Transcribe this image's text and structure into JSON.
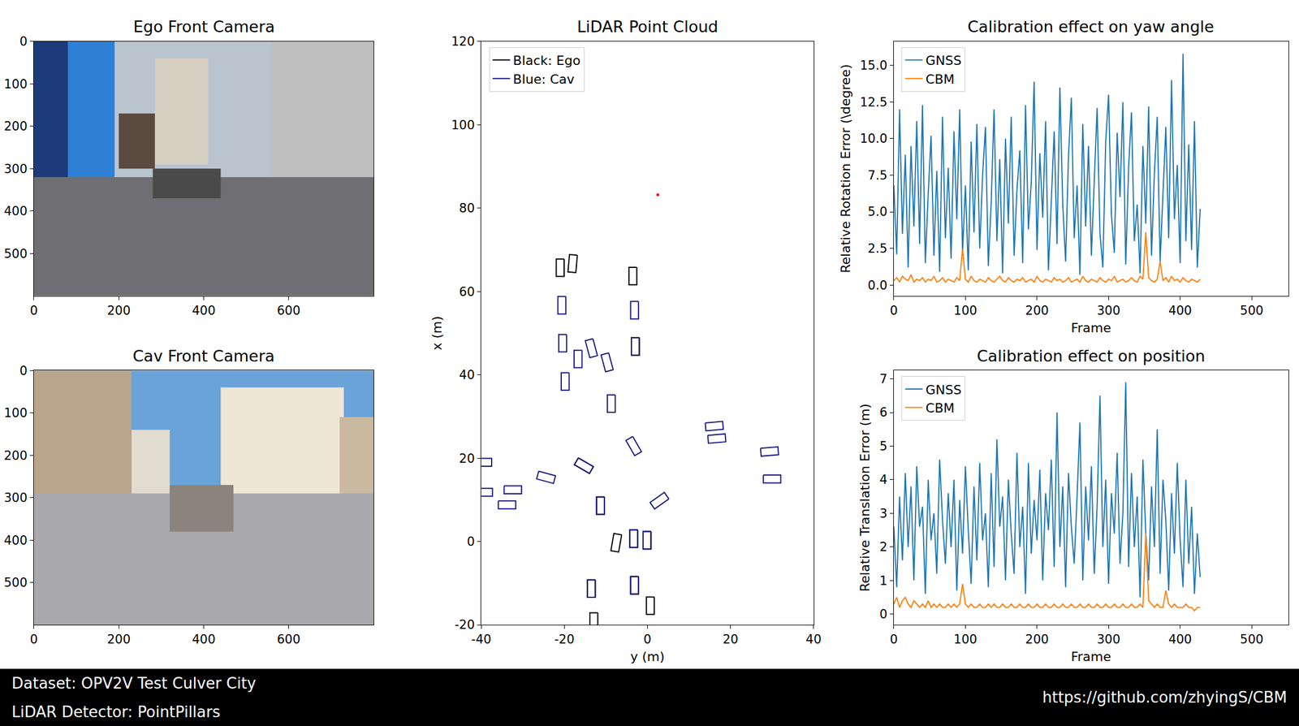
{
  "chart_data": [
    {
      "type": "image",
      "title": "Ego Front Camera",
      "xlim": [
        0,
        800
      ],
      "xticks": [
        0,
        200,
        400,
        600
      ],
      "ylim": [
        600,
        0
      ],
      "yticks": [
        0,
        100,
        200,
        300,
        400,
        500
      ],
      "grid": false
    },
    {
      "type": "image",
      "title": "Cav Front Camera",
      "xlim": [
        0,
        800
      ],
      "xticks": [
        0,
        200,
        400,
        600
      ],
      "ylim": [
        600,
        0
      ],
      "yticks": [
        0,
        100,
        200,
        300,
        400,
        500
      ],
      "grid": false
    },
    {
      "type": "scatter",
      "title": "LiDAR Point Cloud",
      "x_label": "y (m)",
      "y_label": "x (m)",
      "xlim": [
        -40,
        40
      ],
      "xticks": [
        -40,
        -20,
        0,
        20,
        40
      ],
      "ylim": [
        -20,
        120
      ],
      "yticks": [
        -20,
        0,
        20,
        40,
        60,
        80,
        100,
        120
      ],
      "grid": false,
      "legend": "upper left",
      "box_size": [
        1.9,
        4.2
      ],
      "series": [
        {
          "name": "Black: Ego",
          "color": "#000000",
          "boxes": [
            [
              -21.0,
              65.7,
              0
            ],
            [
              -18.0,
              66.7,
              -5
            ],
            [
              -3.5,
              63.7,
              0
            ],
            [
              -2.9,
              46.8,
              0
            ],
            [
              -15.3,
              18.2,
              60
            ],
            [
              -11.3,
              8.6,
              0
            ],
            [
              -0.1,
              0.3,
              0
            ],
            [
              -3.3,
              0.7,
              0
            ],
            [
              -7.5,
              -0.3,
              -10
            ],
            [
              -13.5,
              -11.3,
              0
            ],
            [
              -3.1,
              -10.5,
              0
            ],
            [
              0.7,
              -15.4,
              0
            ],
            [
              -12.9,
              -19.2,
              0
            ]
          ]
        },
        {
          "name": "Blue: Cav",
          "color": "#1a1a80",
          "boxes": [
            [
              -3.1,
              55.5,
              0
            ],
            [
              -20.6,
              56.7,
              0
            ],
            [
              -20.4,
              47.6,
              0
            ],
            [
              -13.5,
              46.4,
              15
            ],
            [
              -16.7,
              43.8,
              0
            ],
            [
              -9.7,
              43.0,
              15
            ],
            [
              -2.9,
              46.8,
              0
            ],
            [
              -19.8,
              38.4,
              0
            ],
            [
              -8.7,
              33.1,
              0
            ],
            [
              -3.3,
              22.9,
              30
            ],
            [
              -15.3,
              18.2,
              60
            ],
            [
              -24.4,
              15.4,
              75
            ],
            [
              -32.4,
              12.4,
              90
            ],
            [
              -33.8,
              8.8,
              90
            ],
            [
              -39.6,
              19.0,
              90
            ],
            [
              -39.4,
              11.8,
              90
            ],
            [
              -11.3,
              8.6,
              0
            ],
            [
              2.9,
              9.8,
              -55
            ],
            [
              16.1,
              27.7,
              95
            ],
            [
              16.7,
              24.7,
              95
            ],
            [
              29.4,
              21.6,
              95
            ],
            [
              30.0,
              15.0,
              90
            ],
            [
              -0.1,
              0.3,
              0
            ],
            [
              -3.3,
              0.7,
              0
            ],
            [
              -13.5,
              -11.3,
              0
            ],
            [
              -3.1,
              -10.5,
              0
            ]
          ]
        }
      ],
      "red_point": {
        "y": 2.5,
        "x": 83.2,
        "color": "#ff0000"
      }
    },
    {
      "type": "line",
      "title": "Calibration effect on yaw angle",
      "x_label": "Frame",
      "y_label": "Relative Rotation Error (\\degree)",
      "xlim": [
        0,
        551
      ],
      "xticks": [
        0,
        100,
        200,
        300,
        400,
        500
      ],
      "ylim": [
        -0.74,
        16.64
      ],
      "yticks": [
        {
          "value": 0,
          "label": "0.0"
        },
        2.5,
        {
          "value": 5,
          "label": "5.0"
        },
        7.5,
        {
          "value": 10,
          "label": "10.0"
        },
        12.5,
        {
          "value": 15,
          "label": "15.0"
        }
      ],
      "grid": false,
      "legend": "upper left",
      "x": [
        0,
        4,
        8,
        12,
        16,
        20,
        24,
        28,
        32,
        36,
        40,
        44,
        48,
        52,
        56,
        60,
        64,
        68,
        72,
        76,
        80,
        84,
        88,
        92,
        96,
        100,
        104,
        108,
        112,
        116,
        120,
        124,
        128,
        132,
        136,
        140,
        144,
        148,
        152,
        156,
        160,
        164,
        168,
        172,
        176,
        180,
        184,
        188,
        192,
        196,
        200,
        204,
        208,
        212,
        216,
        220,
        224,
        228,
        232,
        236,
        240,
        244,
        248,
        252,
        256,
        260,
        264,
        268,
        272,
        276,
        280,
        284,
        288,
        292,
        296,
        300,
        304,
        308,
        312,
        316,
        320,
        324,
        328,
        332,
        336,
        340,
        344,
        348,
        352,
        356,
        360,
        364,
        368,
        372,
        376,
        380,
        384,
        388,
        392,
        396,
        400,
        404,
        408,
        412,
        416,
        420,
        424,
        428
      ],
      "series": [
        {
          "name": "GNSS",
          "color": "#1f77b4",
          "values": [
            6.8,
            2.1,
            12.0,
            3.5,
            8.9,
            1.2,
            9.5,
            4.0,
            11.2,
            2.8,
            12.3,
            1.5,
            6.2,
            10.2,
            2.0,
            7.8,
            0.9,
            11.5,
            3.2,
            8.0,
            1.8,
            10.5,
            4.5,
            12.0,
            2.2,
            6.8,
            1.0,
            9.8,
            3.6,
            11.0,
            2.5,
            7.5,
            10.8,
            1.3,
            5.6,
            12.0,
            3.0,
            8.6,
            0.8,
            10.0,
            4.2,
            11.5,
            2.0,
            6.5,
            9.2,
            1.5,
            12.3,
            3.8,
            7.0,
            13.9,
            2.4,
            9.0,
            4.6,
            11.2,
            1.0,
            6.0,
            10.5,
            2.8,
            13.5,
            5.5,
            1.6,
            8.8,
            12.8,
            3.2,
            6.8,
            0.7,
            11.0,
            4.0,
            9.5,
            2.0,
            7.2,
            12.1,
            3.5,
            1.2,
            9.8,
            13.0,
            4.8,
            2.2,
            10.4,
            6.0,
            12.5,
            1.4,
            8.0,
            11.8,
            3.0,
            5.5,
            0.8,
            9.5,
            4.2,
            12.2,
            2.0,
            7.6,
            11.5,
            1.6,
            6.2,
            10.8,
            3.2,
            14.0,
            4.5,
            8.2,
            1.5,
            15.8,
            3.0,
            9.6,
            2.4,
            11.2,
            1.2,
            5.2
          ]
        },
        {
          "name": "CBM",
          "color": "#ff7f0e",
          "values": [
            0.3,
            0.5,
            0.2,
            0.6,
            0.4,
            0.3,
            0.7,
            0.2,
            0.4,
            0.3,
            0.5,
            0.2,
            0.4,
            0.3,
            0.6,
            0.2,
            0.3,
            0.5,
            0.2,
            0.4,
            0.3,
            0.2,
            0.5,
            0.3,
            2.5,
            0.4,
            0.2,
            0.6,
            0.3,
            0.2,
            0.4,
            0.3,
            0.2,
            0.5,
            0.3,
            0.2,
            0.4,
            0.6,
            0.3,
            0.2,
            0.5,
            0.3,
            0.2,
            0.4,
            0.3,
            0.5,
            0.2,
            0.3,
            0.4,
            0.2,
            0.6,
            0.3,
            0.2,
            0.4,
            0.3,
            0.2,
            0.5,
            0.3,
            0.4,
            0.2,
            0.3,
            0.5,
            0.2,
            0.3,
            0.4,
            0.2,
            0.6,
            0.3,
            0.2,
            0.4,
            0.3,
            0.2,
            0.5,
            0.3,
            0.2,
            0.4,
            0.3,
            0.6,
            0.2,
            0.3,
            0.4,
            0.2,
            0.3,
            0.5,
            0.3,
            0.2,
            0.6,
            0.4,
            3.6,
            0.5,
            0.3,
            0.2,
            0.4,
            1.6,
            0.3,
            0.5,
            0.2,
            0.6,
            0.3,
            0.4,
            0.2,
            0.5,
            0.3,
            0.2,
            0.4,
            0.3,
            0.2,
            0.4
          ]
        }
      ]
    },
    {
      "type": "line",
      "title": "Calibration effect on position",
      "x_label": "Frame",
      "y_label": "Relative Translation Error (m)",
      "xlim": [
        0,
        551
      ],
      "xticks": [
        0,
        100,
        200,
        300,
        400,
        500
      ],
      "ylim": [
        -0.32,
        7.25
      ],
      "yticks": [
        0,
        1,
        2,
        3,
        4,
        5,
        6,
        7
      ],
      "grid": false,
      "legend": "upper left",
      "x": [
        0,
        4,
        8,
        12,
        16,
        20,
        24,
        28,
        32,
        36,
        40,
        44,
        48,
        52,
        56,
        60,
        64,
        68,
        72,
        76,
        80,
        84,
        88,
        92,
        96,
        100,
        104,
        108,
        112,
        116,
        120,
        124,
        128,
        132,
        136,
        140,
        144,
        148,
        152,
        156,
        160,
        164,
        168,
        172,
        176,
        180,
        184,
        188,
        192,
        196,
        200,
        204,
        208,
        212,
        216,
        220,
        224,
        228,
        232,
        236,
        240,
        244,
        248,
        252,
        256,
        260,
        264,
        268,
        272,
        276,
        280,
        284,
        288,
        292,
        296,
        300,
        304,
        308,
        312,
        316,
        320,
        324,
        328,
        332,
        336,
        340,
        344,
        348,
        352,
        356,
        360,
        364,
        368,
        372,
        376,
        380,
        384,
        388,
        392,
        396,
        400,
        404,
        408,
        412,
        416,
        420,
        424,
        428
      ],
      "series": [
        {
          "name": "GNSS",
          "color": "#1f77b4",
          "values": [
            2.6,
            0.8,
            3.5,
            1.6,
            4.2,
            2.0,
            3.8,
            1.0,
            4.4,
            2.6,
            3.2,
            0.6,
            4.0,
            2.2,
            3.0,
            1.2,
            4.6,
            2.8,
            1.5,
            3.6,
            2.0,
            4.0,
            0.7,
            3.4,
            1.8,
            4.4,
            2.5,
            0.9,
            3.8,
            1.6,
            4.5,
            2.2,
            3.0,
            0.8,
            4.2,
            1.4,
            5.2,
            2.6,
            3.5,
            1.0,
            4.0,
            2.4,
            1.2,
            4.8,
            2.0,
            3.2,
            0.6,
            4.5,
            1.8,
            3.4,
            2.2,
            4.3,
            1.0,
            3.6,
            2.5,
            4.6,
            1.4,
            6.0,
            2.0,
            3.8,
            0.8,
            4.2,
            2.6,
            1.5,
            3.5,
            5.7,
            1.0,
            3.8,
            2.2,
            4.4,
            1.2,
            3.2,
            6.5,
            2.0,
            4.0,
            0.9,
            3.6,
            2.4,
            4.8,
            1.5,
            3.0,
            6.9,
            1.4,
            4.2,
            2.0,
            3.5,
            0.5,
            4.6,
            2.4,
            1.0,
            3.8,
            2.0,
            5.5,
            1.2,
            4.0,
            2.8,
            0.7,
            3.6,
            1.8,
            4.5,
            2.2,
            0.8,
            4.0,
            1.5,
            3.2,
            0.6,
            2.4,
            1.1
          ]
        },
        {
          "name": "CBM",
          "color": "#ff7f0e",
          "values": [
            0.3,
            0.5,
            0.2,
            0.4,
            0.5,
            0.3,
            0.2,
            0.4,
            0.3,
            0.2,
            0.3,
            0.2,
            0.4,
            0.2,
            0.3,
            0.2,
            0.3,
            0.2,
            0.2,
            0.3,
            0.2,
            0.3,
            0.2,
            0.3,
            0.9,
            0.3,
            0.2,
            0.3,
            0.2,
            0.2,
            0.3,
            0.2,
            0.2,
            0.3,
            0.2,
            0.3,
            0.2,
            0.2,
            0.3,
            0.2,
            0.2,
            0.3,
            0.2,
            0.2,
            0.3,
            0.2,
            0.2,
            0.3,
            0.2,
            0.2,
            0.3,
            0.2,
            0.2,
            0.3,
            0.2,
            0.2,
            0.3,
            0.2,
            0.2,
            0.3,
            0.2,
            0.2,
            0.3,
            0.2,
            0.2,
            0.3,
            0.2,
            0.2,
            0.3,
            0.2,
            0.2,
            0.3,
            0.2,
            0.2,
            0.3,
            0.2,
            0.2,
            0.3,
            0.2,
            0.2,
            0.3,
            0.2,
            0.2,
            0.3,
            0.2,
            0.2,
            0.3,
            0.2,
            2.4,
            0.4,
            0.3,
            0.2,
            0.3,
            0.2,
            0.2,
            0.7,
            0.3,
            0.2,
            0.3,
            0.2,
            0.2,
            0.2,
            0.3,
            0.2,
            0.2,
            0.1,
            0.2,
            0.2
          ]
        }
      ]
    }
  ],
  "footer": {
    "left": [
      "Dataset: OPV2V Test Culver City",
      "LiDAR Detector: PointPillars"
    ],
    "right": "https://github.com/zhyingS/CBM"
  }
}
